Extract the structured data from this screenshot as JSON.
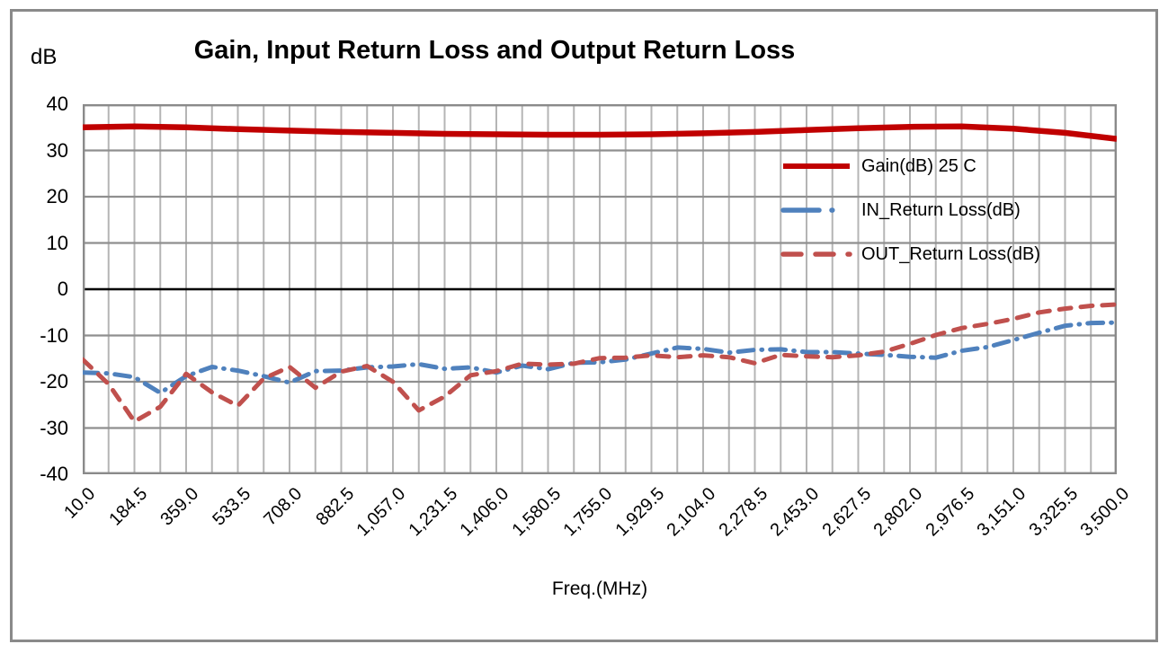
{
  "window": {
    "background": "#FFFFFF"
  },
  "chart_data": {
    "type": "line",
    "title": "Gain, Input Return Loss and Output Return Loss",
    "y_axis_unit": "dB",
    "xlabel": "Freq.(MHz)",
    "ylabel": "dB",
    "ylim": [
      -40,
      40
    ],
    "y_tick_values": [
      40,
      30,
      20,
      10,
      0,
      -10,
      -20,
      -30,
      -40
    ],
    "y_tick_labels": [
      "40",
      "30",
      "20",
      "10",
      "0",
      "-10",
      "-20",
      "-30",
      "-40"
    ],
    "x_range": [
      10,
      3500
    ],
    "x_tick_values": [
      10,
      184.5,
      359,
      533.5,
      708,
      882.5,
      1057,
      1231.5,
      1406,
      1580.5,
      1755,
      1929.5,
      2104,
      2278.5,
      2453,
      2627.5,
      2802,
      2976.5,
      3151,
      3325.5,
      3500
    ],
    "x_tick_labels": [
      "10.0",
      "184.5",
      "359.0",
      "533.5",
      "708.0",
      "882.5",
      "1,057.0",
      "1,231.5",
      "1,406.0",
      "1,580.5",
      "1,755.0",
      "1,929.5",
      "2,104.0",
      "2,278.5",
      "2,453.0",
      "2,627.5",
      "2,802.0",
      "2,976.5",
      "3,151.0",
      "3,325.5",
      "3,500.0"
    ],
    "grid": {
      "vertical_step_mhz": 87.25,
      "horizontal_step_db": 10
    },
    "legend_position": "inside-top-right",
    "series": [
      {
        "name": "Gain(dB) 25 C",
        "color": "#C00000",
        "style": "solid",
        "x": [
          10,
          184.5,
          359,
          533.5,
          708,
          882.5,
          1057,
          1231.5,
          1406,
          1580.5,
          1755,
          1929.5,
          2104,
          2278.5,
          2453,
          2627.5,
          2802,
          2976.5,
          3151,
          3325.5,
          3500
        ],
        "values": [
          35.0,
          35.2,
          35.0,
          34.6,
          34.3,
          34.0,
          33.8,
          33.6,
          33.5,
          33.4,
          33.4,
          33.5,
          33.7,
          34.0,
          34.4,
          34.8,
          35.1,
          35.2,
          34.7,
          33.8,
          32.5
        ]
      },
      {
        "name": "IN_Return Loss(dB)",
        "color": "#4F81BD",
        "style": "dash-dot",
        "x": [
          10,
          97.25,
          184.5,
          271.75,
          359,
          446.25,
          533.5,
          620.75,
          708,
          795.25,
          882.5,
          969.75,
          1057,
          1144.25,
          1231.5,
          1318.75,
          1406,
          1493.25,
          1580.5,
          1667.75,
          1755,
          1842.25,
          1929.5,
          2016.75,
          2104,
          2191.25,
          2278.5,
          2365.75,
          2453,
          2540.25,
          2627.5,
          2714.75,
          2802,
          2889.25,
          2976.5,
          3063.75,
          3151,
          3238.25,
          3325.5,
          3412.75,
          3500
        ],
        "values": [
          -18.0,
          -18.2,
          -19.0,
          -22.4,
          -18.8,
          -16.8,
          -17.6,
          -18.8,
          -20.2,
          -17.7,
          -17.6,
          -16.9,
          -16.7,
          -16.2,
          -17.2,
          -16.9,
          -18.0,
          -16.5,
          -17.3,
          -15.9,
          -15.8,
          -15.2,
          -13.9,
          -12.6,
          -12.9,
          -13.7,
          -13.1,
          -13.0,
          -13.6,
          -13.6,
          -13.9,
          -14.2,
          -14.6,
          -14.8,
          -13.3,
          -12.5,
          -11.0,
          -9.4,
          -7.9,
          -7.3,
          -7.2
        ]
      },
      {
        "name": "OUT_Return Loss(dB)",
        "color": "#C0504D",
        "style": "dash",
        "x": [
          10,
          97.25,
          184.5,
          271.75,
          359,
          446.25,
          533.5,
          620.75,
          708,
          795.25,
          882.5,
          969.75,
          1057,
          1144.25,
          1231.5,
          1318.75,
          1406,
          1493.25,
          1580.5,
          1667.75,
          1755,
          1842.25,
          1929.5,
          2016.75,
          2104,
          2191.25,
          2278.5,
          2365.75,
          2453,
          2540.25,
          2627.5,
          2714.75,
          2802,
          2889.25,
          2976.5,
          3063.75,
          3151,
          3238.25,
          3325.5,
          3412.75,
          3500
        ],
        "values": [
          -15.2,
          -20.5,
          -28.6,
          -25.4,
          -18.3,
          -22.3,
          -25.2,
          -19.3,
          -16.8,
          -21.3,
          -17.8,
          -16.6,
          -20.0,
          -26.2,
          -23.2,
          -18.6,
          -17.7,
          -16.1,
          -16.3,
          -16.1,
          -14.9,
          -14.8,
          -14.3,
          -14.7,
          -14.3,
          -14.7,
          -16.0,
          -14.2,
          -14.5,
          -14.7,
          -14.3,
          -13.5,
          -11.8,
          -9.9,
          -8.4,
          -7.5,
          -6.4,
          -5.0,
          -4.2,
          -3.6,
          -3.3
        ]
      }
    ],
    "colors": {
      "grid_vertical": "#B5B5B5",
      "grid_horizontal": "#8F8F8F",
      "plot_border": "#8A8A8A",
      "zero_axis": "#000000",
      "text": "#000000"
    }
  }
}
